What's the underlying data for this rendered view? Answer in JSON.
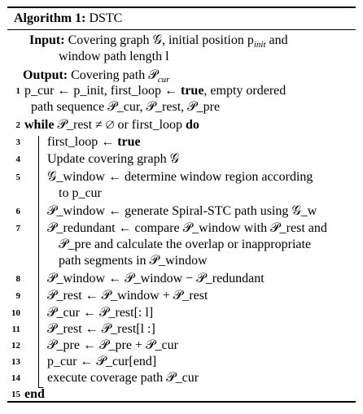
{
  "header": {
    "prefix": "Algorithm 1:",
    "name": "DSTC"
  },
  "io": {
    "input_label": "Input:",
    "input_text_1": "Covering graph 𝒢, initial position p",
    "input_sub": "init",
    "input_text_2": " and",
    "input_cont": "window path length l",
    "output_label": "Output:",
    "output_text": "Covering path 𝒫",
    "output_sub": "cur"
  },
  "lines": [
    {
      "num": "1",
      "parts": [
        "p_cur ← p_init, first_loop ← ",
        "true",
        ", empty ordered"
      ],
      "cont": "path sequence 𝒫_cur, 𝒫_rest, 𝒫_pre"
    },
    {
      "num": "2",
      "kw1": "while",
      "text": " 𝒫_rest ≠ ∅ or first_loop ",
      "kw2": "do"
    },
    {
      "num": "3",
      "text": "first_loop ← ",
      "kw": "true"
    },
    {
      "num": "4",
      "text": "Update covering graph 𝒢"
    },
    {
      "num": "5",
      "text": "𝒢_window ← determine window region according",
      "cont": "to p_cur"
    },
    {
      "num": "6",
      "text": "𝒫_window ← generate Spiral-STC path using 𝒢_w"
    },
    {
      "num": "7",
      "text": "𝒫_redundant ← compare 𝒫_window with 𝒫_rest and",
      "cont": "𝒫_pre and calculate the overlap or inappropriate",
      "cont2": "path segments in 𝒫_window"
    },
    {
      "num": "8",
      "text": "𝒫_window ← 𝒫_window − 𝒫_redundant"
    },
    {
      "num": "9",
      "text": "𝒫_rest ← 𝒫_window + 𝒫_rest"
    },
    {
      "num": "10",
      "text": "𝒫_cur ← 𝒫_rest[: l]"
    },
    {
      "num": "11",
      "text": "𝒫_rest ← 𝒫_rest[l :]"
    },
    {
      "num": "12",
      "text": "𝒫_pre ← 𝒫_pre + 𝒫_cur"
    },
    {
      "num": "13",
      "text": "p_cur ← 𝒫_cur[end]"
    },
    {
      "num": "14",
      "text": "execute coverage path 𝒫_cur"
    },
    {
      "num": "15",
      "kw": "end"
    }
  ]
}
